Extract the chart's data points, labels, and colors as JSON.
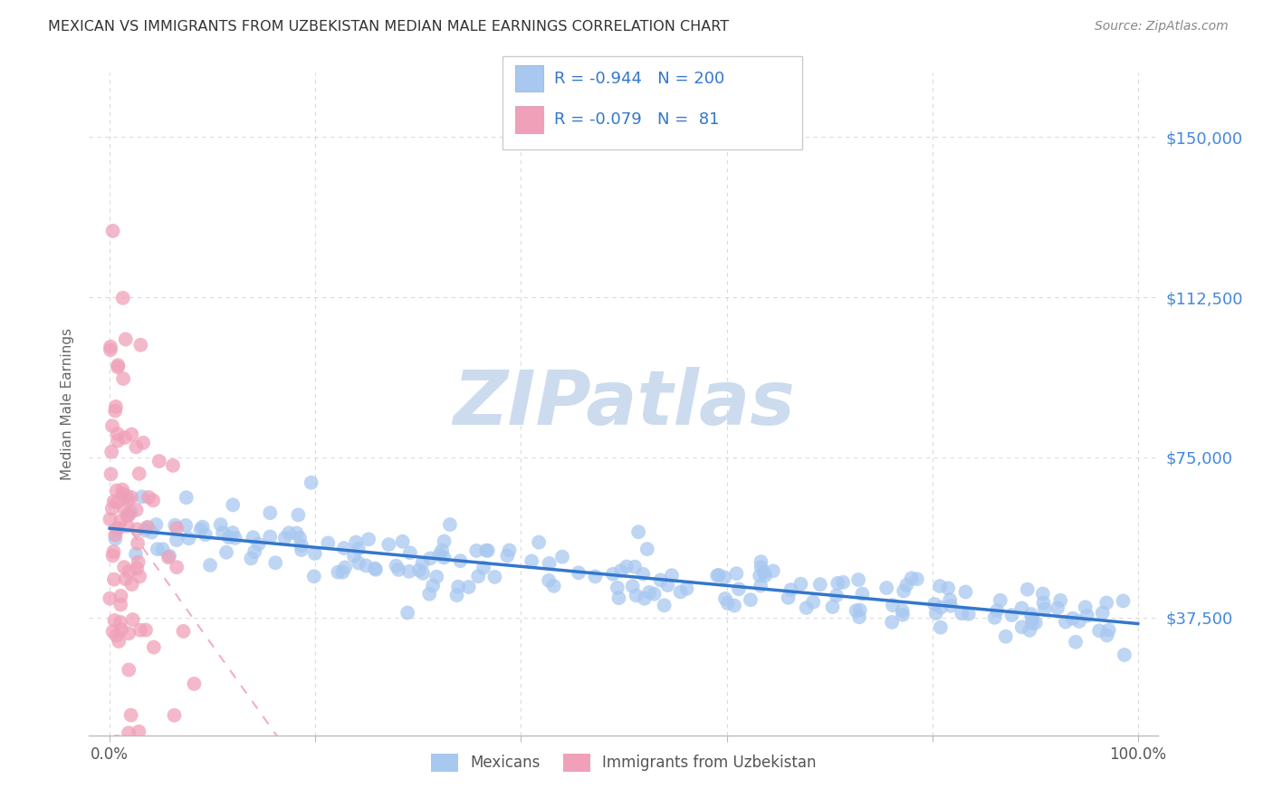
{
  "title": "MEXICAN VS IMMIGRANTS FROM UZBEKISTAN MEDIAN MALE EARNINGS CORRELATION CHART",
  "source": "Source: ZipAtlas.com",
  "ylabel": "Median Male Earnings",
  "ytick_labels": [
    "$37,500",
    "$75,000",
    "$112,500",
    "$150,000"
  ],
  "ytick_values": [
    37500,
    75000,
    112500,
    150000
  ],
  "ymin": 10000,
  "ymax": 165000,
  "xmin": -0.02,
  "xmax": 1.02,
  "blue_R": "-0.944",
  "blue_N": "200",
  "pink_R": "-0.079",
  "pink_N": "81",
  "blue_color": "#a8c8f0",
  "pink_color": "#f0a0b8",
  "blue_line_color": "#3377cc",
  "pink_line_color": "#f0a0b8",
  "legend_label_blue": "Mexicans",
  "legend_label_pink": "Immigrants from Uzbekistan",
  "watermark_zip": "ZIP",
  "watermark_atlas": "atlas",
  "watermark_color": "#ccdcee",
  "background_color": "#ffffff",
  "grid_color": "#cccccc",
  "title_color": "#333333",
  "axis_label_color": "#666666",
  "right_tick_color": "#4488dd",
  "blue_seed": 42,
  "pink_seed": 77
}
